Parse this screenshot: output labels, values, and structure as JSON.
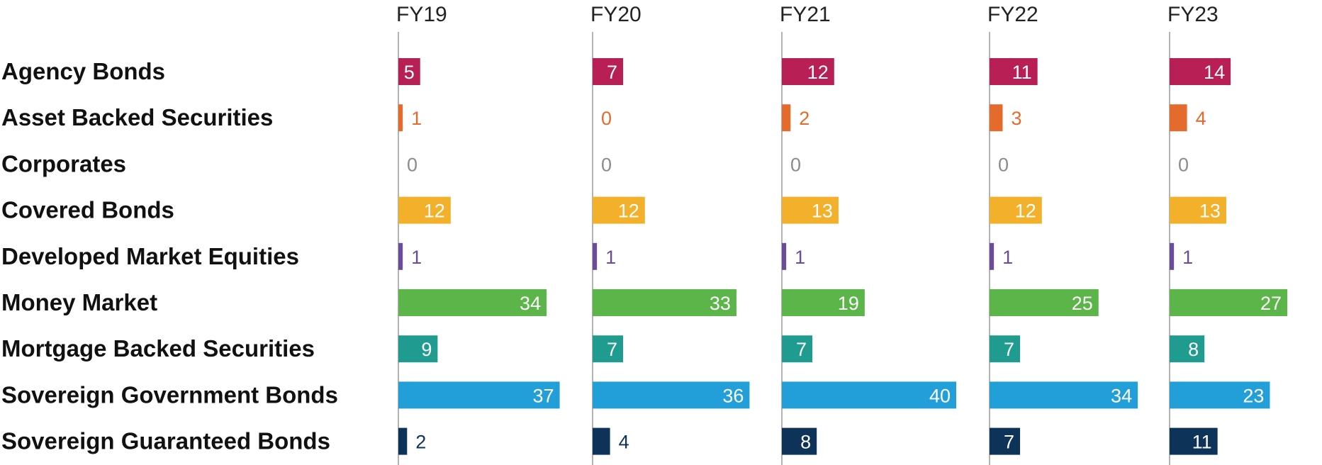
{
  "chart_data": {
    "type": "bar",
    "orientation": "horizontal",
    "layout": "small-multiples",
    "categories": [
      "Agency Bonds",
      "Asset Backed Securities",
      "Corporates",
      "Covered Bonds",
      "Developed Market Equities",
      "Money Market",
      "Mortgage Backed Securities",
      "Sovereign Government Bonds",
      "Sovereign Guaranteed Bonds"
    ],
    "colors": [
      "#b81f55",
      "#e46b2c",
      "#8c8c8c",
      "#f2b02b",
      "#6b4c9a",
      "#5bb548",
      "#1f9c8f",
      "#229fd9",
      "#0e3358"
    ],
    "series": [
      {
        "name": "FY19",
        "values": [
          5,
          1,
          0,
          12,
          1,
          34,
          9,
          37,
          2
        ]
      },
      {
        "name": "FY20",
        "values": [
          7,
          0,
          0,
          12,
          1,
          33,
          7,
          36,
          4
        ]
      },
      {
        "name": "FY21",
        "values": [
          12,
          2,
          0,
          13,
          1,
          19,
          7,
          40,
          8
        ]
      },
      {
        "name": "FY22",
        "values": [
          11,
          3,
          0,
          12,
          1,
          25,
          7,
          34,
          7
        ]
      },
      {
        "name": "FY23",
        "values": [
          14,
          4,
          0,
          13,
          1,
          27,
          8,
          23,
          11
        ]
      }
    ],
    "title": "",
    "xlabel": "",
    "ylabel": "",
    "grid": false,
    "legend": "none"
  }
}
